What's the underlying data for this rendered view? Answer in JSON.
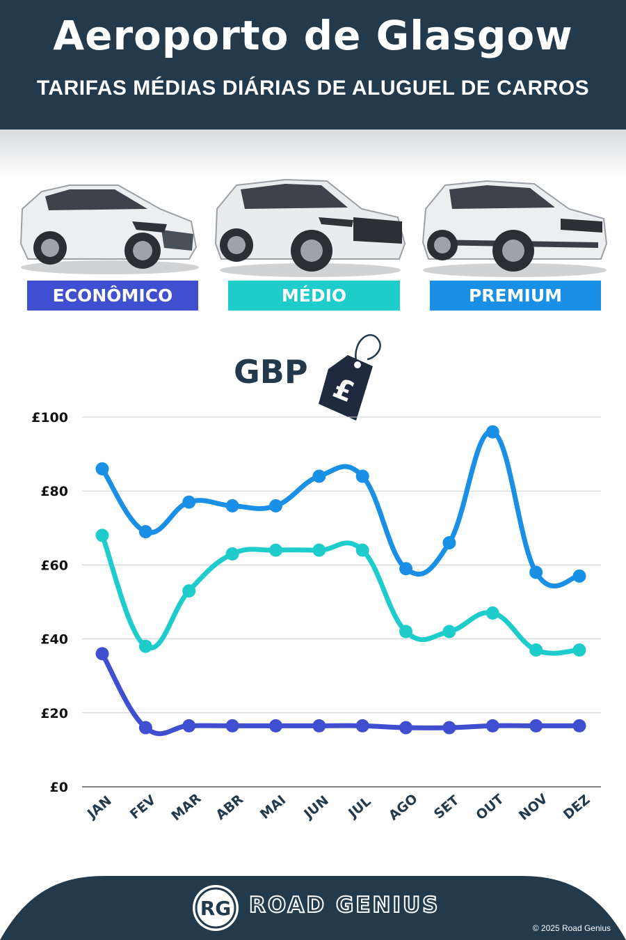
{
  "header": {
    "title": "Aeroporto de Glasgow",
    "subtitle": "TARIFAS MÉDIAS DIÁRIAS DE ALUGUEL DE CARROS"
  },
  "categories_bar": [
    {
      "label": "ECONÔMICO",
      "color": "#3f4fd0"
    },
    {
      "label": "MÉDIO",
      "color": "#1ecdcb"
    },
    {
      "label": "PREMIUM",
      "color": "#1a8fe6"
    }
  ],
  "currency": {
    "label": "GBP",
    "tag_symbol": "£"
  },
  "chart_data": {
    "type": "line",
    "categories": [
      "JAN",
      "FEV",
      "MAR",
      "ABR",
      "MAI",
      "JUN",
      "JUL",
      "AGO",
      "SET",
      "OUT",
      "NOV",
      "DEZ"
    ],
    "series": [
      {
        "name": "PREMIUM",
        "color": "#1a8fe6",
        "values": [
          86,
          69,
          77,
          76,
          76,
          84,
          84,
          59,
          66,
          96,
          58,
          57
        ]
      },
      {
        "name": "MÉDIO",
        "color": "#1ecdcb",
        "values": [
          68,
          38,
          53,
          63,
          64,
          64,
          64,
          42,
          42,
          47,
          37,
          37
        ]
      },
      {
        "name": "ECONÔMICO",
        "color": "#3f4fd0",
        "values": [
          36,
          16,
          16.5,
          16.5,
          16.5,
          16.5,
          16.5,
          16,
          16,
          16.5,
          16.5,
          16.5
        ]
      }
    ],
    "yticks": [
      "£0",
      "£20",
      "£40",
      "£60",
      "£80",
      "£100"
    ],
    "ylim": [
      0,
      100
    ],
    "grid": true
  },
  "footer": {
    "brand": "ROAD GENIUS",
    "logo_text": "RG",
    "copyright": "© 2025 Road Genius",
    "background": "#233a4d"
  }
}
